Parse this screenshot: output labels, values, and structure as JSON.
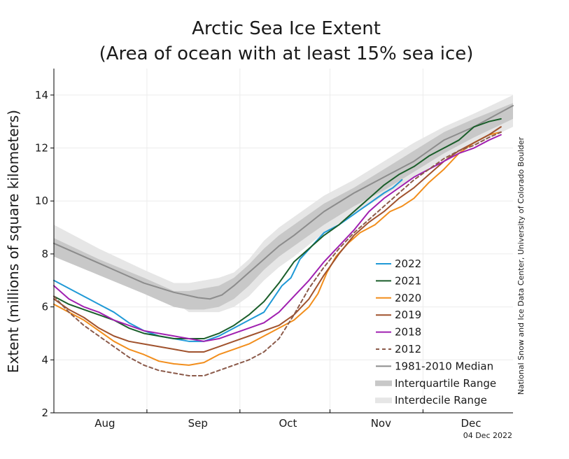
{
  "chart_data": {
    "type": "line",
    "title_line1": "Arctic Sea Ice Extent",
    "title_line2": "(Area of ocean with at least 15% sea ice)",
    "ylabel": "Extent (millions of square kilometers)",
    "ylim": [
      2,
      15
    ],
    "yticks": [
      2,
      4,
      6,
      8,
      10,
      12,
      14
    ],
    "xlim": [
      0,
      153
    ],
    "x_unit": "days since Jul 15",
    "month_ticks": [
      {
        "label": "Aug",
        "day": 17
      },
      {
        "label": "Sep",
        "day": 48
      },
      {
        "label": "Oct",
        "day": 78
      },
      {
        "label": "Nov",
        "day": 109
      },
      {
        "label": "Dec",
        "day": 139
      }
    ],
    "month_boundaries": [
      31,
      62,
      92,
      123
    ],
    "grid": true,
    "legend_position": "lower-right",
    "date_stamp": "04 Dec 2022",
    "credit": "National Snow and Ice Data Center, University of Colorado Boulder",
    "interdecile": {
      "name": "Interdecile Range",
      "color": "#e6e6e6",
      "points": [
        [
          0,
          8.4,
          9.1
        ],
        [
          15,
          7.6,
          8.2
        ],
        [
          30,
          6.8,
          7.4
        ],
        [
          40,
          6.2,
          6.9
        ],
        [
          45,
          5.8,
          6.9
        ],
        [
          50,
          5.8,
          7.0
        ],
        [
          55,
          5.8,
          7.1
        ],
        [
          60,
          6.0,
          7.3
        ],
        [
          65,
          6.4,
          7.8
        ],
        [
          70,
          7.0,
          8.5
        ],
        [
          75,
          7.5,
          9.0
        ],
        [
          80,
          7.9,
          9.4
        ],
        [
          90,
          8.8,
          10.2
        ],
        [
          100,
          9.5,
          10.8
        ],
        [
          110,
          10.2,
          11.5
        ],
        [
          120,
          10.9,
          12.2
        ],
        [
          130,
          11.6,
          12.8
        ],
        [
          140,
          12.1,
          13.3
        ],
        [
          153,
          12.8,
          14.0
        ]
      ]
    },
    "interquartile": {
      "name": "Interquartile Range",
      "color": "#c8c8c8",
      "points": [
        [
          0,
          7.9,
          8.6
        ],
        [
          15,
          7.2,
          7.8
        ],
        [
          30,
          6.5,
          7.1
        ],
        [
          40,
          6.0,
          6.6
        ],
        [
          45,
          5.9,
          6.6
        ],
        [
          50,
          5.9,
          6.7
        ],
        [
          55,
          6.0,
          6.8
        ],
        [
          60,
          6.3,
          7.1
        ],
        [
          65,
          6.8,
          7.6
        ],
        [
          70,
          7.4,
          8.2
        ],
        [
          75,
          7.9,
          8.7
        ],
        [
          80,
          8.3,
          9.1
        ],
        [
          90,
          9.1,
          9.9
        ],
        [
          100,
          9.8,
          10.5
        ],
        [
          110,
          10.4,
          11.2
        ],
        [
          120,
          11.1,
          11.9
        ],
        [
          130,
          11.8,
          12.6
        ],
        [
          140,
          12.4,
          13.1
        ],
        [
          153,
          13.1,
          13.7
        ]
      ]
    },
    "series": [
      {
        "name": "1981-2010 Median",
        "color": "#8c8c8c",
        "dash": false,
        "width": 2,
        "points": [
          [
            0,
            8.4
          ],
          [
            10,
            7.9
          ],
          [
            20,
            7.4
          ],
          [
            30,
            6.9
          ],
          [
            40,
            6.55
          ],
          [
            48,
            6.35
          ],
          [
            52,
            6.3
          ],
          [
            56,
            6.45
          ],
          [
            60,
            6.8
          ],
          [
            65,
            7.3
          ],
          [
            70,
            7.8
          ],
          [
            75,
            8.3
          ],
          [
            80,
            8.7
          ],
          [
            90,
            9.6
          ],
          [
            100,
            10.3
          ],
          [
            110,
            10.9
          ],
          [
            120,
            11.5
          ],
          [
            130,
            12.3
          ],
          [
            140,
            12.8
          ],
          [
            153,
            13.6
          ]
        ]
      },
      {
        "name": "2022",
        "color": "#1f99d6",
        "dash": false,
        "width": 2,
        "points": [
          [
            0,
            7.0
          ],
          [
            5,
            6.7
          ],
          [
            10,
            6.4
          ],
          [
            15,
            6.1
          ],
          [
            20,
            5.8
          ],
          [
            25,
            5.4
          ],
          [
            30,
            5.1
          ],
          [
            35,
            4.9
          ],
          [
            40,
            4.8
          ],
          [
            45,
            4.7
          ],
          [
            50,
            4.7
          ],
          [
            55,
            4.9
          ],
          [
            60,
            5.2
          ],
          [
            65,
            5.5
          ],
          [
            70,
            5.8
          ],
          [
            73,
            6.3
          ],
          [
            76,
            6.8
          ],
          [
            79,
            7.1
          ],
          [
            82,
            7.8
          ],
          [
            86,
            8.3
          ],
          [
            90,
            8.8
          ],
          [
            95,
            9.1
          ],
          [
            100,
            9.5
          ],
          [
            105,
            9.9
          ],
          [
            110,
            10.3
          ],
          [
            113,
            10.5
          ],
          [
            116,
            10.8
          ]
        ]
      },
      {
        "name": "2021",
        "color": "#1a5e2a",
        "dash": false,
        "width": 2,
        "points": [
          [
            0,
            6.4
          ],
          [
            5,
            6.1
          ],
          [
            10,
            5.9
          ],
          [
            15,
            5.7
          ],
          [
            20,
            5.5
          ],
          [
            25,
            5.2
          ],
          [
            30,
            5.0
          ],
          [
            35,
            4.9
          ],
          [
            40,
            4.8
          ],
          [
            45,
            4.8
          ],
          [
            50,
            4.8
          ],
          [
            55,
            5.0
          ],
          [
            60,
            5.3
          ],
          [
            65,
            5.7
          ],
          [
            70,
            6.2
          ],
          [
            75,
            6.9
          ],
          [
            80,
            7.7
          ],
          [
            85,
            8.2
          ],
          [
            90,
            8.7
          ],
          [
            95,
            9.1
          ],
          [
            100,
            9.6
          ],
          [
            105,
            10.1
          ],
          [
            110,
            10.6
          ],
          [
            115,
            11.0
          ],
          [
            120,
            11.3
          ],
          [
            125,
            11.7
          ],
          [
            130,
            12.0
          ],
          [
            135,
            12.3
          ],
          [
            140,
            12.8
          ],
          [
            145,
            13.0
          ],
          [
            149,
            13.1
          ]
        ]
      },
      {
        "name": "2020",
        "color": "#f28e1c",
        "dash": false,
        "width": 2,
        "points": [
          [
            0,
            6.1
          ],
          [
            5,
            5.8
          ],
          [
            10,
            5.5
          ],
          [
            15,
            5.1
          ],
          [
            20,
            4.7
          ],
          [
            25,
            4.4
          ],
          [
            30,
            4.2
          ],
          [
            35,
            3.95
          ],
          [
            40,
            3.85
          ],
          [
            45,
            3.8
          ],
          [
            50,
            3.9
          ],
          [
            55,
            4.2
          ],
          [
            60,
            4.4
          ],
          [
            65,
            4.6
          ],
          [
            70,
            4.9
          ],
          [
            75,
            5.2
          ],
          [
            80,
            5.5
          ],
          [
            85,
            6.0
          ],
          [
            88,
            6.5
          ],
          [
            91,
            7.3
          ],
          [
            94,
            7.9
          ],
          [
            98,
            8.4
          ],
          [
            102,
            8.8
          ],
          [
            107,
            9.1
          ],
          [
            112,
            9.6
          ],
          [
            116,
            9.8
          ],
          [
            120,
            10.1
          ],
          [
            125,
            10.7
          ],
          [
            130,
            11.2
          ],
          [
            135,
            11.8
          ],
          [
            140,
            12.2
          ],
          [
            145,
            12.5
          ],
          [
            149,
            12.6
          ]
        ]
      },
      {
        "name": "2019",
        "color": "#a0522d",
        "dash": false,
        "width": 2,
        "points": [
          [
            0,
            6.3
          ],
          [
            5,
            5.9
          ],
          [
            10,
            5.6
          ],
          [
            15,
            5.2
          ],
          [
            20,
            4.9
          ],
          [
            25,
            4.7
          ],
          [
            30,
            4.6
          ],
          [
            35,
            4.5
          ],
          [
            40,
            4.4
          ],
          [
            45,
            4.3
          ],
          [
            50,
            4.3
          ],
          [
            55,
            4.5
          ],
          [
            60,
            4.7
          ],
          [
            65,
            4.9
          ],
          [
            70,
            5.1
          ],
          [
            75,
            5.3
          ],
          [
            80,
            5.7
          ],
          [
            85,
            6.3
          ],
          [
            90,
            7.2
          ],
          [
            95,
            8.0
          ],
          [
            100,
            8.7
          ],
          [
            105,
            9.2
          ],
          [
            110,
            9.6
          ],
          [
            115,
            10.1
          ],
          [
            120,
            10.5
          ],
          [
            125,
            11.0
          ],
          [
            130,
            11.5
          ],
          [
            135,
            11.9
          ],
          [
            140,
            12.2
          ],
          [
            145,
            12.5
          ],
          [
            149,
            12.8
          ]
        ]
      },
      {
        "name": "2018",
        "color": "#a020b0",
        "dash": false,
        "width": 2,
        "points": [
          [
            0,
            6.8
          ],
          [
            5,
            6.3
          ],
          [
            10,
            6.0
          ],
          [
            15,
            5.8
          ],
          [
            20,
            5.5
          ],
          [
            25,
            5.3
          ],
          [
            30,
            5.1
          ],
          [
            35,
            5.0
          ],
          [
            40,
            4.9
          ],
          [
            45,
            4.8
          ],
          [
            50,
            4.7
          ],
          [
            55,
            4.8
          ],
          [
            60,
            5.0
          ],
          [
            65,
            5.2
          ],
          [
            70,
            5.4
          ],
          [
            75,
            5.8
          ],
          [
            80,
            6.4
          ],
          [
            85,
            7.0
          ],
          [
            90,
            7.7
          ],
          [
            95,
            8.3
          ],
          [
            100,
            8.9
          ],
          [
            105,
            9.6
          ],
          [
            110,
            10.1
          ],
          [
            115,
            10.5
          ],
          [
            120,
            10.9
          ],
          [
            125,
            11.2
          ],
          [
            130,
            11.5
          ],
          [
            135,
            11.8
          ],
          [
            140,
            12.0
          ],
          [
            145,
            12.3
          ],
          [
            149,
            12.5
          ]
        ]
      },
      {
        "name": "2012",
        "color": "#8b5a4a",
        "dash": true,
        "width": 2,
        "points": [
          [
            0,
            6.4
          ],
          [
            5,
            5.8
          ],
          [
            10,
            5.3
          ],
          [
            15,
            4.9
          ],
          [
            20,
            4.5
          ],
          [
            25,
            4.1
          ],
          [
            30,
            3.8
          ],
          [
            35,
            3.6
          ],
          [
            40,
            3.5
          ],
          [
            45,
            3.4
          ],
          [
            50,
            3.4
          ],
          [
            55,
            3.6
          ],
          [
            60,
            3.8
          ],
          [
            65,
            4.0
          ],
          [
            70,
            4.3
          ],
          [
            75,
            4.8
          ],
          [
            80,
            5.7
          ],
          [
            85,
            6.7
          ],
          [
            90,
            7.5
          ],
          [
            95,
            8.2
          ],
          [
            100,
            8.8
          ],
          [
            105,
            9.3
          ],
          [
            110,
            9.8
          ],
          [
            115,
            10.3
          ],
          [
            120,
            10.8
          ],
          [
            125,
            11.2
          ],
          [
            130,
            11.6
          ],
          [
            135,
            11.9
          ],
          [
            140,
            12.1
          ],
          [
            145,
            12.4
          ],
          [
            149,
            12.6
          ]
        ]
      }
    ],
    "legend_order": [
      "2022",
      "2021",
      "2020",
      "2019",
      "2018",
      "2012",
      "1981-2010 Median",
      "Interquartile Range",
      "Interdecile Range"
    ]
  }
}
